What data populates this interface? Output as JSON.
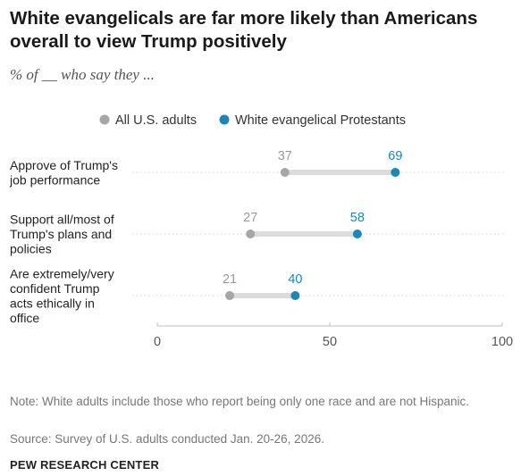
{
  "title": "White evangelicals are far more likely than Americans overall to view Trump positively",
  "subtitle": "% of __ who say they ...",
  "note": "Note: White adults include those who report being only one race and are not Hispanic.",
  "source": "Source: Survey of U.S. adults conducted Jan. 20-26, 2026.",
  "brand": "PEW RESEARCH CENTER",
  "colors": {
    "all_adults": "#a6a6a6",
    "white_evangelical": "#1a87b5",
    "connector": "#dcdcdc",
    "axis": "#bfbfbf"
  },
  "chart_data": {
    "type": "dot",
    "categories": [
      "Approve of Trump's job performance",
      "Support all/most of Trump's plans and policies",
      "Are extremely/very confident Trump acts ethically in office"
    ],
    "category_lines": [
      [
        "Approve of Trump's",
        "job performance"
      ],
      [
        "Support all/most of",
        "Trump's plans and",
        "policies"
      ],
      [
        "Are extremely/very",
        "confident Trump",
        "acts ethically in",
        "office"
      ]
    ],
    "series": [
      {
        "name": "All U.S. adults",
        "values": [
          37,
          27,
          21
        ]
      },
      {
        "name": "White evangelical Protestants",
        "values": [
          69,
          58,
          40
        ]
      }
    ],
    "xlim": [
      0,
      100
    ],
    "xticks": [
      0,
      50,
      100
    ],
    "legend": "top-center",
    "grid": false
  }
}
